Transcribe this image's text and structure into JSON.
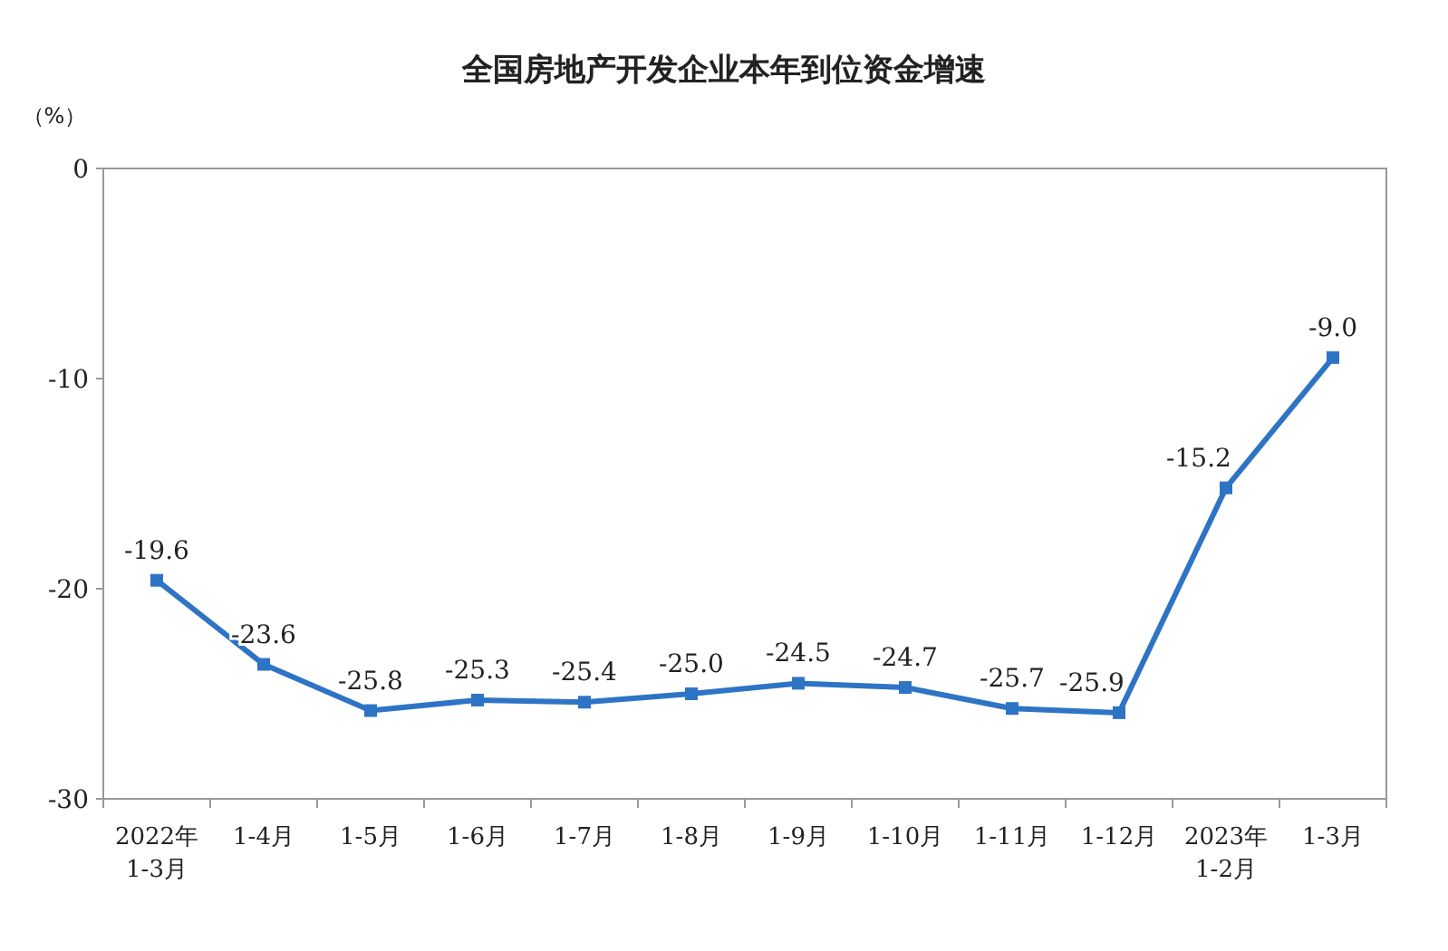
{
  "chart_data": {
    "type": "line",
    "title": "全国房地产开发企业本年到位资金增速",
    "ylabel": "（%）",
    "categories": [
      "2022年\n1-3月",
      "1-4月",
      "1-5月",
      "1-6月",
      "1-7月",
      "1-8月",
      "1-9月",
      "1-10月",
      "1-11月",
      "1-12月",
      "2023年\n1-2月",
      "1-3月"
    ],
    "series": [
      {
        "color": "#2e74c5",
        "values": [
          -19.6,
          -23.6,
          -25.8,
          -25.3,
          -25.4,
          -25.0,
          -24.5,
          -24.7,
          -25.7,
          -25.9,
          -15.2,
          -9.0
        ],
        "value_labels": [
          "-19.6",
          "-23.6",
          "-25.8",
          "-25.3",
          "-25.4",
          "-25.0",
          "-24.5",
          "-24.7",
          "-25.7",
          "-25.9",
          "-15.2",
          "-9.0"
        ]
      }
    ],
    "ylim": [
      -30,
      0
    ],
    "yticks": [
      0,
      -10,
      -20,
      -30
    ],
    "grid": false,
    "marker": "square",
    "line_style": "solid"
  }
}
